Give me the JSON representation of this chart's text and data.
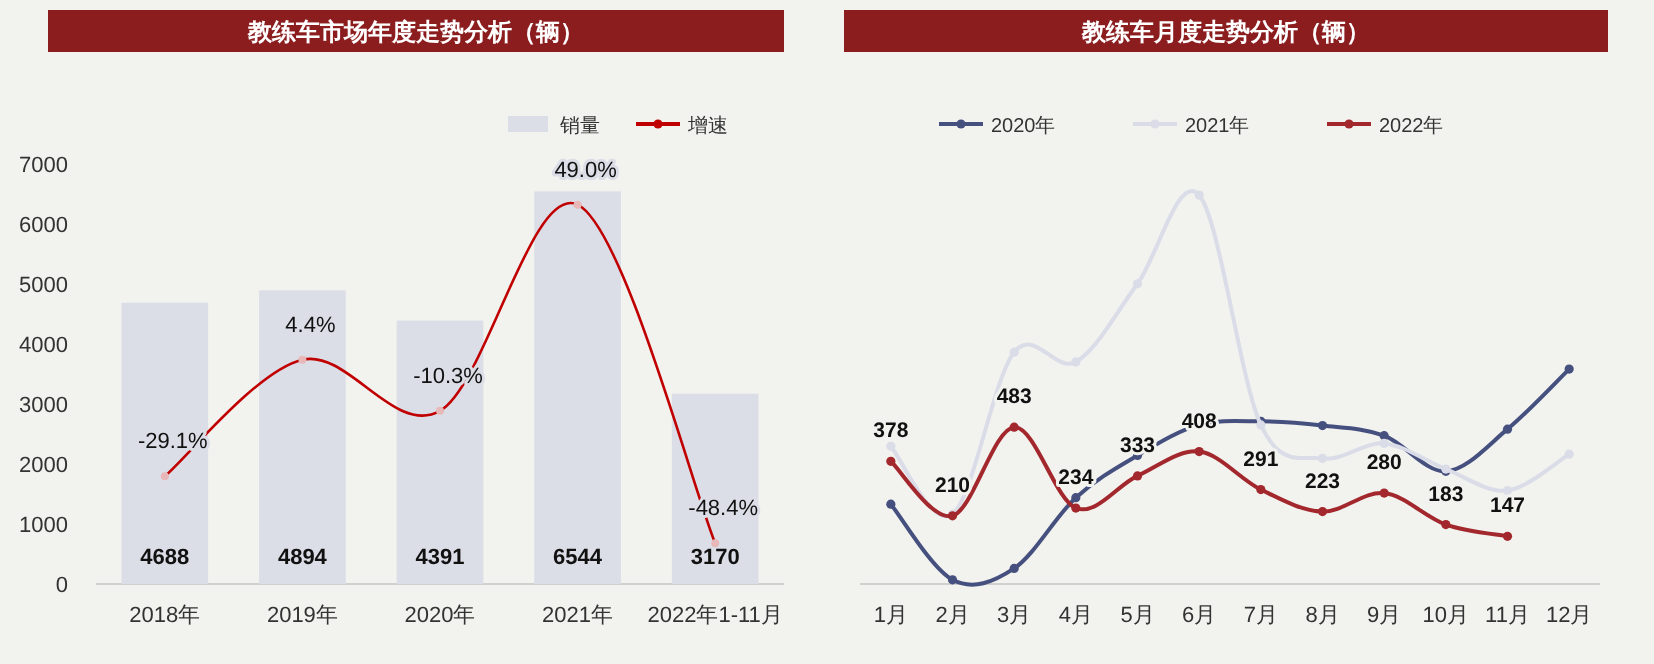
{
  "chart_data": [
    {
      "type": "bar",
      "title": "教练车市场年度走势分析（辆）",
      "categories": [
        "2018年",
        "2019年",
        "2020年",
        "2021年",
        "2022年1-11月"
      ],
      "series": [
        {
          "name": "销量",
          "type": "bar",
          "color": "#dcdee7",
          "values": [
            4688,
            4894,
            4391,
            6544,
            3170
          ],
          "value_labels": [
            "4688",
            "4894",
            "4391",
            "6544",
            "3170"
          ]
        },
        {
          "name": "增速",
          "type": "line",
          "axis": "y2",
          "color": "#c00000",
          "values": [
            -29.1,
            4.4,
            -10.3,
            49.0,
            -48.4
          ],
          "value_labels": [
            "-29.1%",
            "4.4%",
            "-10.3%",
            "49.0%",
            "-48.4%"
          ]
        }
      ],
      "ylim": [
        0,
        7000
      ],
      "yticks": [
        0,
        1000,
        2000,
        3000,
        4000,
        5000,
        6000,
        7000
      ],
      "legend": "top right",
      "marker": "circle",
      "grid": false
    },
    {
      "type": "line",
      "title": "教练车月度走势分析（辆）",
      "categories": [
        "1月",
        "2月",
        "3月",
        "4月",
        "5月",
        "6月",
        "7月",
        "8月",
        "9月",
        "10月",
        "11月",
        "12月"
      ],
      "series": [
        {
          "name": "2020年",
          "color": "#45507f",
          "values": [
            246,
            13,
            48,
            266,
            396,
            490,
            501,
            488,
            457,
            347,
            477,
            662
          ]
        },
        {
          "name": "2021年",
          "color": "#dadce8",
          "values": [
            424,
            215,
            714,
            684,
            925,
            1198,
            490,
            387,
            433,
            354,
            288,
            400
          ]
        },
        {
          "name": "2022年",
          "color": "#a3282d",
          "values": [
            378,
            210,
            483,
            234,
            333,
            408,
            291,
            223,
            280,
            183,
            147,
            null
          ],
          "value_labels": [
            "378",
            "210",
            "483",
            "234",
            "333",
            "408",
            "291",
            "223",
            "280",
            "183",
            "147",
            null
          ]
        }
      ],
      "tick_labels": "x",
      "legend": "top",
      "marker": "circle",
      "grid": false
    }
  ]
}
